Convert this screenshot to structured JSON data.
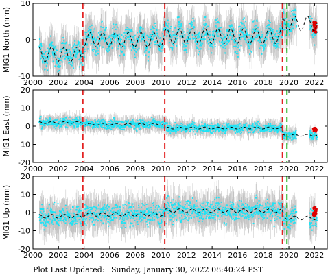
{
  "chart_data": {
    "type": "scatter",
    "x_range": [
      2000,
      2023
    ],
    "x_ticks": [
      "2000",
      "2002",
      "2004",
      "2006",
      "2008",
      "2010",
      "2012",
      "2014",
      "2016",
      "2018",
      "2020",
      "2022"
    ],
    "x_tick_values": [
      2000,
      2002,
      2004,
      2006,
      2008,
      2010,
      2012,
      2014,
      2016,
      2018,
      2020,
      2022
    ],
    "grid": false,
    "colors": {
      "data_points": "#1fe3f5",
      "error_bars": "#b0b0b0",
      "model": "#000000",
      "event_red": "#e32222",
      "event_green": "#22b422",
      "recent_points": "#dd0000"
    },
    "panels": [
      {
        "ylabel": "MIG1 North (mm)",
        "ylim": [
          -10,
          10
        ],
        "y_ticks": [
          "-10",
          "0",
          "10"
        ],
        "y_tick_values": [
          -10,
          0,
          10
        ],
        "model_offset": [
          -4,
          0,
          1,
          4.5
        ],
        "seasonal_amplitude": 2,
        "scatter": 5,
        "recent_red": [
          2,
          5
        ]
      },
      {
        "ylabel": "MIG1 East (mm)",
        "ylim": [
          -20,
          20
        ],
        "y_ticks": [
          "-20",
          "-10",
          "0",
          "10",
          "20"
        ],
        "y_tick_values": [
          -20,
          -10,
          0,
          10,
          20
        ],
        "model_offset": [
          2,
          1,
          -1,
          -5
        ],
        "seasonal_amplitude": 0.5,
        "scatter": 4,
        "recent_red": [
          -3,
          -1
        ]
      },
      {
        "ylabel": "MIG1 Up (mm)",
        "ylim": [
          -20,
          20
        ],
        "y_ticks": [
          "-20",
          "-10",
          "0",
          "10",
          "20"
        ],
        "y_tick_values": [
          -20,
          -10,
          0,
          10,
          20
        ],
        "model_offset": [
          -2,
          -1,
          1,
          -3
        ],
        "seasonal_amplitude": 1,
        "scatter": 9,
        "recent_red": [
          -2,
          3
        ]
      }
    ],
    "event_lines": [
      {
        "year": 2003.9,
        "color": "red"
      },
      {
        "year": 2010.3,
        "color": "red"
      },
      {
        "year": 2019.5,
        "color": "red"
      },
      {
        "year": 2019.85,
        "color": "green"
      }
    ],
    "data_span": [
      2000.5,
      2022.2
    ],
    "data_gap": [
      2020.6,
      2021.6
    ]
  },
  "footer": {
    "label": "Plot Last Updated:",
    "timestamp": "Sunday, January 30, 2022 08:40:24 PST"
  }
}
